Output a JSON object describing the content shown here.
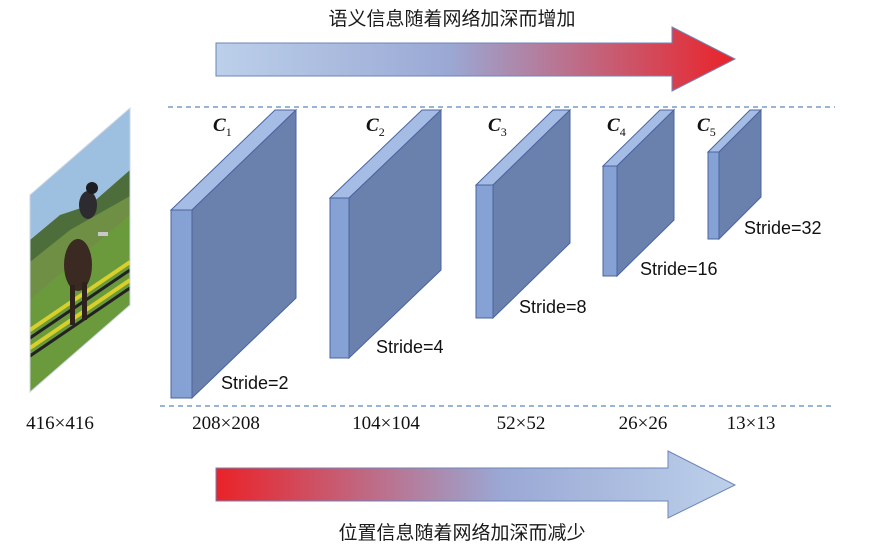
{
  "top_arrow_text": "语义信息随着网络加深而增加",
  "bottom_arrow_text": "位置信息随着网络加深而减少",
  "input_size": "416×416",
  "colors": {
    "arrow_blue": "#b9cce6",
    "arrow_mid": "#9aa8d4",
    "arrow_red": "#e8262a",
    "block_face": "#86a2d4",
    "block_side": "#6a80ad",
    "block_edge": "#4a64a0",
    "dash_line": "#5b86bf"
  },
  "stages": [
    {
      "label": "C",
      "sub": "1",
      "stride": "Stride=2",
      "size": "208×208"
    },
    {
      "label": "C",
      "sub": "2",
      "stride": "Stride=4",
      "size": "104×104"
    },
    {
      "label": "C",
      "sub": "3",
      "stride": "Stride=8",
      "size": "52×52"
    },
    {
      "label": "C",
      "sub": "4",
      "stride": "Stride=16",
      "size": "26×26"
    },
    {
      "label": "C",
      "sub": "5",
      "stride": "Stride=32",
      "size": "13×13"
    }
  ]
}
